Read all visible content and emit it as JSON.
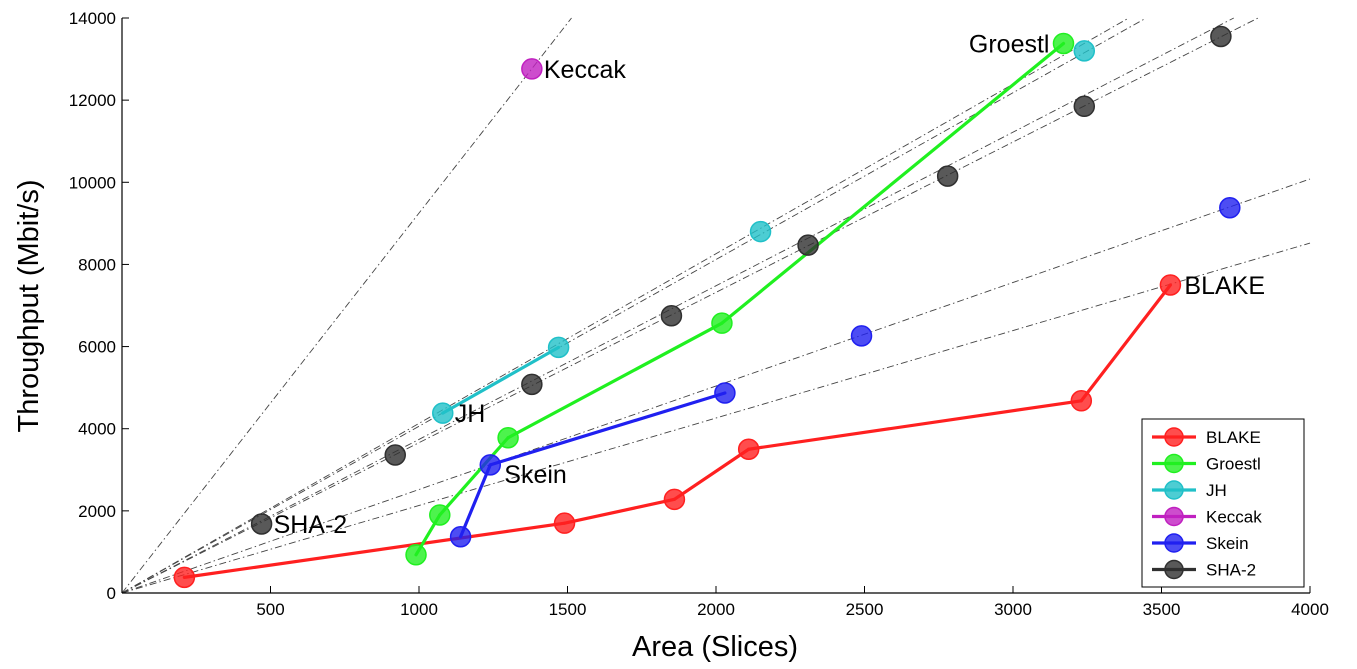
{
  "chart_data": {
    "type": "scatter",
    "xlabel": "Area (Slices)",
    "ylabel": "Throughput (Mbit/s)",
    "xlim": [
      0,
      4000
    ],
    "ylim": [
      0,
      14000
    ],
    "xticks": [
      500,
      1000,
      1500,
      2000,
      2500,
      3000,
      3500,
      4000
    ],
    "yticks": [
      0,
      2000,
      4000,
      6000,
      8000,
      10000,
      12000,
      14000
    ],
    "grid": false,
    "legend_position": "bottom-right",
    "series": [
      {
        "name": "BLAKE",
        "color": "#ff2020",
        "connected": true,
        "points": [
          [
            210,
            380
          ],
          [
            1490,
            1700
          ],
          [
            1860,
            2280
          ],
          [
            2110,
            3500
          ],
          [
            3230,
            4680
          ],
          [
            3530,
            7500
          ]
        ]
      },
      {
        "name": "Groestl",
        "color": "#20f020",
        "connected": true,
        "points": [
          [
            990,
            930
          ],
          [
            1070,
            1900
          ],
          [
            1300,
            3780
          ],
          [
            2020,
            6570
          ],
          [
            3170,
            13380
          ]
        ]
      },
      {
        "name": "JH",
        "color": "#20c0c8",
        "connected": true,
        "segments": [
          [
            0,
            1
          ]
        ],
        "points": [
          [
            1080,
            4380
          ],
          [
            1470,
            5980
          ],
          [
            2150,
            8800
          ],
          [
            3240,
            13200
          ]
        ]
      },
      {
        "name": "Keccak",
        "color": "#c020c0",
        "connected": false,
        "points": [
          [
            1380,
            12760
          ]
        ]
      },
      {
        "name": "Skein",
        "color": "#2020f0",
        "connected": true,
        "segments": [
          [
            0,
            1
          ],
          [
            1,
            2
          ]
        ],
        "points": [
          [
            1140,
            1370
          ],
          [
            1240,
            3120
          ],
          [
            2030,
            4870
          ],
          [
            2490,
            6260
          ],
          [
            3730,
            9380
          ]
        ]
      },
      {
        "name": "SHA-2",
        "color": "#303030",
        "connected": false,
        "points": [
          [
            470,
            1680
          ],
          [
            920,
            3360
          ],
          [
            1380,
            5080
          ],
          [
            1850,
            6750
          ],
          [
            2310,
            8470
          ],
          [
            2780,
            10150
          ],
          [
            3240,
            11850
          ],
          [
            3700,
            13550
          ]
        ]
      }
    ],
    "reference_lines": [
      {
        "slope": 9.25
      },
      {
        "slope": 4.13
      },
      {
        "slope": 4.06
      },
      {
        "slope": 3.74
      },
      {
        "slope": 3.66
      },
      {
        "slope": 2.52
      },
      {
        "slope": 2.13
      }
    ],
    "annotations": [
      {
        "text": "Keccak",
        "x": 1380,
        "y": 12760,
        "anchor": "start",
        "dx": 12,
        "dy": 9
      },
      {
        "text": "Groestl",
        "x": 3170,
        "y": 13380,
        "anchor": "end",
        "dx": -14,
        "dy": 9
      },
      {
        "text": "BLAKE",
        "x": 3530,
        "y": 7500,
        "anchor": "start",
        "dx": 14,
        "dy": 9
      },
      {
        "text": "JH",
        "x": 1080,
        "y": 4380,
        "anchor": "start",
        "dx": 12,
        "dy": 9
      },
      {
        "text": "Skein",
        "x": 1240,
        "y": 3120,
        "anchor": "start",
        "dx": 14,
        "dy": 18
      },
      {
        "text": "SHA-2",
        "x": 470,
        "y": 1680,
        "anchor": "start",
        "dx": 12,
        "dy": 9
      }
    ]
  }
}
